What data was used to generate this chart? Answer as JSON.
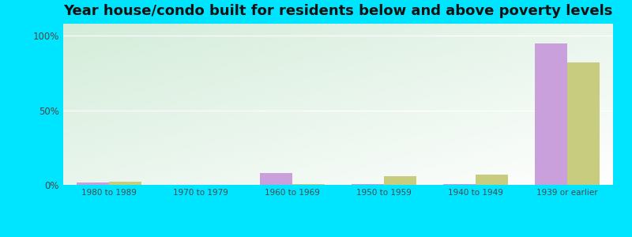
{
  "title": "Year house/condo built for residents below and above poverty levels",
  "categories": [
    "1980 to 1989",
    "1970 to 1979",
    "1960 to 1969",
    "1950 to 1959",
    "1940 to 1949",
    "1939 or earlier"
  ],
  "below_poverty": [
    1.5,
    0.2,
    8.0,
    0.4,
    0.4,
    95.0
  ],
  "above_poverty": [
    2.0,
    0.2,
    0.3,
    6.0,
    7.0,
    82.0
  ],
  "below_color": "#c9a0dc",
  "above_color": "#c8cc7e",
  "background_outer": "#00e5ff",
  "background_plot_topleft": "#d4edda",
  "background_plot_bottomright": "#f8fff8",
  "yticks": [
    0,
    50,
    100
  ],
  "ylim": [
    0,
    108
  ],
  "title_fontsize": 13,
  "bar_width": 0.35
}
